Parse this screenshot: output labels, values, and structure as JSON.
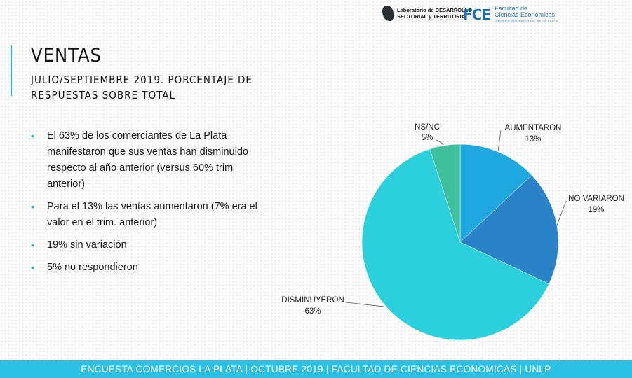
{
  "header": {
    "lab_line1": "Laboratorio de DESARROLLO",
    "lab_line2": "SECTORIAL y TERRITORIAL",
    "fce_mark": "FCE",
    "fce_line1": "Facultad de",
    "fce_line2": "Ciencias Económicas",
    "fce_sub": "UNIVERSIDAD NACIONAL DE LA PLATA"
  },
  "slide": {
    "title": "VENTAS",
    "subtitle": "JULIO/SEPTIEMBRE 2019. PORCENTAJE DE RESPUESTAS SOBRE TOTAL"
  },
  "bullets": [
    "El 63% de los comerciantes de La Plata manifestaron que sus ventas han disminuido respecto al año anterior (versus 60% trim anterior)",
    "Para el 13% las ventas aumentaron (7% era el valor en el trim. anterior)",
    "19% sin variación",
    "5% no respondieron"
  ],
  "chart_data": {
    "type": "pie",
    "title": "",
    "slices": [
      {
        "label": "AUMENTARON",
        "value": 13,
        "value_label": "13%",
        "color": "#1fa8e0"
      },
      {
        "label": "NO VARIARON",
        "value": 19,
        "value_label": "19%",
        "color": "#2a82c8"
      },
      {
        "label": "DISMINUYERON",
        "value": 63,
        "value_label": "63%",
        "color": "#2ccfdc"
      },
      {
        "label": "NS/NC",
        "value": 5,
        "value_label": "5%",
        "color": "#3fbf9b"
      }
    ]
  },
  "footer": {
    "text": "ENCUESTA COMERCIOS LA PLATA | OCTUBRE 2019 | FACULTAD DE CIENCIAS ECONOMICAS | UNLP"
  }
}
